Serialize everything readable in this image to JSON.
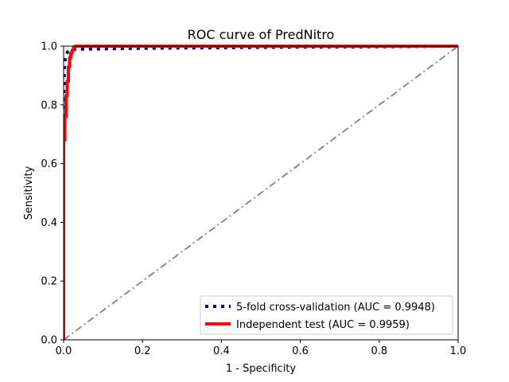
{
  "chart_data": {
    "type": "line",
    "title": "ROC curve of PredNitro",
    "xlabel": "1 - Specificity",
    "ylabel": "Sensitivity",
    "xlim": [
      0,
      1
    ],
    "ylim": [
      0,
      1
    ],
    "xticks": [
      0.0,
      0.2,
      0.4,
      0.6,
      0.8,
      1.0
    ],
    "yticks": [
      0.0,
      0.2,
      0.4,
      0.6,
      0.8,
      1.0
    ],
    "xtick_labels": [
      "0.0",
      "0.2",
      "0.4",
      "0.6",
      "0.8",
      "1.0"
    ],
    "ytick_labels": [
      "0.0",
      "0.2",
      "0.4",
      "0.6",
      "0.8",
      "1.0"
    ],
    "grid": false,
    "legend_position": "lower-right",
    "series": [
      {
        "name": "5-fold cross-validation (AUC = 0.9948)",
        "color": "#000080",
        "style": "dotted",
        "x": [
          0.0,
          0.0,
          0.002,
          0.004,
          0.006,
          0.01,
          0.015,
          0.02,
          0.03,
          0.05,
          0.1,
          0.2,
          0.4,
          0.6,
          0.8,
          1.0
        ],
        "y": [
          0.0,
          0.82,
          0.93,
          0.955,
          0.97,
          0.98,
          0.985,
          0.988,
          0.99,
          0.99,
          0.991,
          0.993,
          0.995,
          0.997,
          0.998,
          1.0
        ]
      },
      {
        "name": "Independent test (AUC = 0.9959)",
        "color": "#ff0000",
        "style": "solid",
        "x": [
          0.0,
          0.0,
          0.003,
          0.003,
          0.006,
          0.006,
          0.009,
          0.009,
          0.012,
          0.012,
          0.015,
          0.015,
          0.018,
          0.018,
          0.021,
          0.021,
          0.025,
          0.025,
          0.03,
          0.1,
          0.3,
          0.6,
          1.0
        ],
        "y": [
          0.0,
          0.68,
          0.68,
          0.76,
          0.76,
          0.83,
          0.83,
          0.88,
          0.88,
          0.93,
          0.93,
          0.96,
          0.96,
          0.975,
          0.975,
          0.985,
          0.985,
          0.995,
          1.0,
          1.0,
          1.0,
          1.0,
          1.0
        ]
      },
      {
        "name": "",
        "color": "#808080",
        "style": "dashdot",
        "x": [
          0,
          1
        ],
        "y": [
          0,
          1
        ]
      }
    ]
  }
}
